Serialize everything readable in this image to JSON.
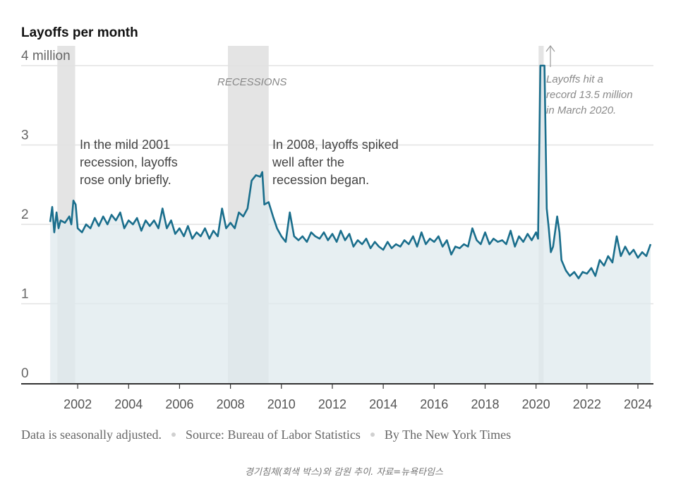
{
  "chart_data": {
    "type": "area",
    "title": "Layoffs per month",
    "y_unit_label": "4 million",
    "yticks": [
      {
        "value": 0,
        "label": "0"
      },
      {
        "value": 1,
        "label": "1"
      },
      {
        "value": 2,
        "label": "2"
      },
      {
        "value": 3,
        "label": "3"
      },
      {
        "value": 4,
        "label": "4 million"
      }
    ],
    "xticks": [
      "2002",
      "2004",
      "2006",
      "2008",
      "2010",
      "2012",
      "2014",
      "2016",
      "2018",
      "2020",
      "2022",
      "2024"
    ],
    "ylim": [
      0,
      4
    ],
    "xlim": [
      2000.9,
      2024.5
    ],
    "grid": true,
    "recessions": [
      {
        "start": 2001.2,
        "end": 2001.9
      },
      {
        "start": 2007.9,
        "end": 2009.5
      },
      {
        "start": 2020.1,
        "end": 2020.3
      }
    ],
    "recession_label": "RECESSIONS",
    "annotations": [
      {
        "lines": [
          "In the mild 2001",
          "recession, layoffs",
          "rose only briefly."
        ]
      },
      {
        "lines": [
          "In 2008, layoffs spiked",
          "well after the",
          "recession began."
        ]
      },
      {
        "lines": [
          "Layoffs hit a",
          "record 13.5 million",
          "in March 2020."
        ]
      }
    ],
    "series": [
      {
        "values": [
          [
            2000.92,
            2.03
          ],
          [
            2001.0,
            2.22
          ],
          [
            2001.08,
            1.9
          ],
          [
            2001.17,
            2.15
          ],
          [
            2001.25,
            1.95
          ],
          [
            2001.33,
            2.05
          ],
          [
            2001.5,
            2.02
          ],
          [
            2001.67,
            2.1
          ],
          [
            2001.75,
            2.0
          ],
          [
            2001.83,
            2.3
          ],
          [
            2001.92,
            2.25
          ],
          [
            2002.0,
            1.95
          ],
          [
            2002.17,
            1.9
          ],
          [
            2002.33,
            2.0
          ],
          [
            2002.5,
            1.95
          ],
          [
            2002.67,
            2.08
          ],
          [
            2002.83,
            1.98
          ],
          [
            2003.0,
            2.1
          ],
          [
            2003.17,
            2.0
          ],
          [
            2003.33,
            2.12
          ],
          [
            2003.5,
            2.05
          ],
          [
            2003.67,
            2.15
          ],
          [
            2003.83,
            1.95
          ],
          [
            2004.0,
            2.05
          ],
          [
            2004.17,
            2.0
          ],
          [
            2004.33,
            2.08
          ],
          [
            2004.5,
            1.92
          ],
          [
            2004.67,
            2.05
          ],
          [
            2004.83,
            1.98
          ],
          [
            2005.0,
            2.05
          ],
          [
            2005.17,
            1.95
          ],
          [
            2005.33,
            2.2
          ],
          [
            2005.5,
            1.95
          ],
          [
            2005.67,
            2.05
          ],
          [
            2005.83,
            1.88
          ],
          [
            2006.0,
            1.95
          ],
          [
            2006.17,
            1.85
          ],
          [
            2006.33,
            1.98
          ],
          [
            2006.5,
            1.82
          ],
          [
            2006.67,
            1.9
          ],
          [
            2006.83,
            1.85
          ],
          [
            2007.0,
            1.95
          ],
          [
            2007.17,
            1.82
          ],
          [
            2007.33,
            1.92
          ],
          [
            2007.5,
            1.85
          ],
          [
            2007.67,
            2.2
          ],
          [
            2007.83,
            1.95
          ],
          [
            2008.0,
            2.02
          ],
          [
            2008.17,
            1.95
          ],
          [
            2008.33,
            2.15
          ],
          [
            2008.5,
            2.1
          ],
          [
            2008.67,
            2.2
          ],
          [
            2008.83,
            2.55
          ],
          [
            2009.0,
            2.62
          ],
          [
            2009.17,
            2.6
          ],
          [
            2009.25,
            2.66
          ],
          [
            2009.33,
            2.25
          ],
          [
            2009.5,
            2.28
          ],
          [
            2009.67,
            2.1
          ],
          [
            2009.83,
            1.95
          ],
          [
            2010.0,
            1.85
          ],
          [
            2010.17,
            1.78
          ],
          [
            2010.33,
            2.15
          ],
          [
            2010.5,
            1.85
          ],
          [
            2010.67,
            1.8
          ],
          [
            2010.83,
            1.85
          ],
          [
            2011.0,
            1.78
          ],
          [
            2011.17,
            1.9
          ],
          [
            2011.33,
            1.85
          ],
          [
            2011.5,
            1.82
          ],
          [
            2011.67,
            1.9
          ],
          [
            2011.83,
            1.8
          ],
          [
            2012.0,
            1.88
          ],
          [
            2012.17,
            1.78
          ],
          [
            2012.33,
            1.92
          ],
          [
            2012.5,
            1.8
          ],
          [
            2012.67,
            1.88
          ],
          [
            2012.83,
            1.72
          ],
          [
            2013.0,
            1.8
          ],
          [
            2013.17,
            1.75
          ],
          [
            2013.33,
            1.82
          ],
          [
            2013.5,
            1.7
          ],
          [
            2013.67,
            1.78
          ],
          [
            2013.83,
            1.72
          ],
          [
            2014.0,
            1.68
          ],
          [
            2014.17,
            1.78
          ],
          [
            2014.33,
            1.7
          ],
          [
            2014.5,
            1.75
          ],
          [
            2014.67,
            1.72
          ],
          [
            2014.83,
            1.8
          ],
          [
            2015.0,
            1.75
          ],
          [
            2015.17,
            1.85
          ],
          [
            2015.33,
            1.72
          ],
          [
            2015.5,
            1.9
          ],
          [
            2015.67,
            1.75
          ],
          [
            2015.83,
            1.82
          ],
          [
            2016.0,
            1.78
          ],
          [
            2016.17,
            1.85
          ],
          [
            2016.33,
            1.72
          ],
          [
            2016.5,
            1.8
          ],
          [
            2016.67,
            1.62
          ],
          [
            2016.83,
            1.72
          ],
          [
            2017.0,
            1.7
          ],
          [
            2017.17,
            1.75
          ],
          [
            2017.33,
            1.72
          ],
          [
            2017.5,
            1.95
          ],
          [
            2017.67,
            1.8
          ],
          [
            2017.83,
            1.75
          ],
          [
            2018.0,
            1.9
          ],
          [
            2018.17,
            1.75
          ],
          [
            2018.33,
            1.82
          ],
          [
            2018.5,
            1.78
          ],
          [
            2018.67,
            1.8
          ],
          [
            2018.83,
            1.75
          ],
          [
            2019.0,
            1.92
          ],
          [
            2019.17,
            1.72
          ],
          [
            2019.33,
            1.85
          ],
          [
            2019.5,
            1.78
          ],
          [
            2019.67,
            1.88
          ],
          [
            2019.83,
            1.8
          ],
          [
            2020.0,
            1.9
          ],
          [
            2020.08,
            1.82
          ],
          [
            2020.17,
            4.0
          ],
          [
            2020.25,
            4.0
          ],
          [
            2020.33,
            4.0
          ],
          [
            2020.42,
            2.2
          ],
          [
            2020.5,
            1.95
          ],
          [
            2020.58,
            1.65
          ],
          [
            2020.67,
            1.72
          ],
          [
            2020.83,
            2.1
          ],
          [
            2020.92,
            1.9
          ],
          [
            2021.0,
            1.55
          ],
          [
            2021.17,
            1.42
          ],
          [
            2021.33,
            1.35
          ],
          [
            2021.5,
            1.4
          ],
          [
            2021.67,
            1.32
          ],
          [
            2021.83,
            1.4
          ],
          [
            2022.0,
            1.38
          ],
          [
            2022.17,
            1.45
          ],
          [
            2022.33,
            1.35
          ],
          [
            2022.5,
            1.55
          ],
          [
            2022.67,
            1.48
          ],
          [
            2022.83,
            1.6
          ],
          [
            2023.0,
            1.52
          ],
          [
            2023.17,
            1.85
          ],
          [
            2023.33,
            1.6
          ],
          [
            2023.5,
            1.72
          ],
          [
            2023.67,
            1.62
          ],
          [
            2023.83,
            1.68
          ],
          [
            2024.0,
            1.58
          ],
          [
            2024.17,
            1.65
          ],
          [
            2024.33,
            1.6
          ],
          [
            2024.5,
            1.75
          ]
        ]
      }
    ]
  },
  "footer": {
    "note": "Data is seasonally adjusted.",
    "source": "Source: Bureau of Labor Statistics",
    "credit": "By The New York Times"
  },
  "caption": "경기침체(회색 박스)와 감원 추이. 자료=뉴욕타임스",
  "colors": {
    "line": "#1a6e8c",
    "area": "#dfe9ee",
    "recession": "#e4e4e4",
    "grid": "#e2e2e2",
    "axis": "#333333"
  }
}
